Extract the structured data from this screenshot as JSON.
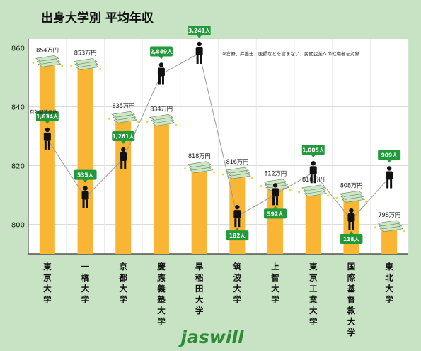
{
  "chart_data": {
    "type": "bar",
    "title": "出身大学別 平均年収",
    "note": "※官僚、弁護士、医師などを含まない、民間企業への就職者を対象",
    "value_unit": "万円",
    "count_unit": "人",
    "categories": [
      "東京大学",
      "一橋大学",
      "京都大学",
      "慶應義塾大学",
      "早稲田大学",
      "筑波大学",
      "上智大学",
      "東京工業大学",
      "国際基督教大学",
      "東北大学"
    ],
    "values": [
      854,
      853,
      835,
      834,
      818,
      816,
      812,
      810,
      808,
      798
    ],
    "respondents": [
      1634,
      535,
      1261,
      2849,
      3241,
      182,
      592,
      1005,
      118,
      909
    ],
    "respondents_display": [
      "1,634",
      "535",
      "1,261",
      "2,849",
      "3,241",
      "182",
      "592",
      "1,005",
      "118",
      "909"
    ],
    "respondents_label": "有効回答者数",
    "yticks": [
      800,
      820,
      840,
      860
    ],
    "ylim": [
      790,
      863
    ],
    "grid": true,
    "brand": "jaswill",
    "colors": {
      "background": "#c7e3c3",
      "plot_background": "#ffffff",
      "bar": "#f9b634",
      "badge": "#229a3c",
      "line": "#9a9a9a",
      "person": "#111111",
      "money": "#cfe5c7"
    }
  }
}
